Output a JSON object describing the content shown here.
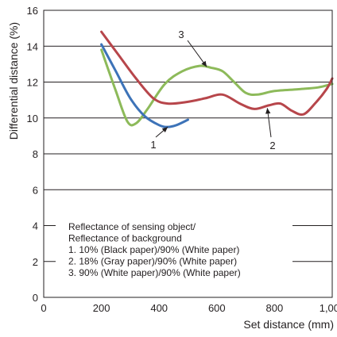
{
  "chart_data": {
    "type": "line",
    "title": "",
    "xlabel": "Set distance (mm)",
    "ylabel": "Differential distance (%)",
    "xlim": [
      0,
      1000
    ],
    "ylim": [
      0,
      16
    ],
    "x_ticks": [
      0,
      200,
      400,
      600,
      800,
      1000
    ],
    "x_tick_labels": [
      "0",
      "200",
      "400",
      "600",
      "800",
      "1,000"
    ],
    "y_ticks": [
      0,
      2,
      4,
      6,
      8,
      10,
      12,
      14,
      16
    ],
    "y_tick_labels": [
      "0",
      "2",
      "4",
      "6",
      "8",
      "10",
      "12",
      "14",
      "16"
    ],
    "grid": "horizontal",
    "series": [
      {
        "name": "1",
        "color": "#3d73b8",
        "x": [
          200,
          250,
          300,
          350,
          400,
          430,
          460,
          500
        ],
        "y": [
          14.1,
          12.6,
          11.1,
          10.1,
          9.6,
          9.5,
          9.6,
          9.9
        ]
      },
      {
        "name": "2",
        "color": "#b7464b",
        "x": [
          200,
          260,
          320,
          380,
          430,
          500,
          560,
          620,
          680,
          730,
          780,
          820,
          860,
          900,
          940,
          980,
          1000
        ],
        "y": [
          14.8,
          13.5,
          12.2,
          11.1,
          10.8,
          10.9,
          11.1,
          11.3,
          10.8,
          10.5,
          10.7,
          10.8,
          10.4,
          10.2,
          10.8,
          11.6,
          12.2
        ]
      },
      {
        "name": "3",
        "color": "#8dba5a",
        "x": [
          200,
          250,
          290,
          320,
          360,
          420,
          480,
          540,
          580,
          620,
          660,
          700,
          740,
          800,
          880,
          950,
          1000
        ],
        "y": [
          13.8,
          11.5,
          9.8,
          9.7,
          10.5,
          11.9,
          12.6,
          12.9,
          12.8,
          12.6,
          12.0,
          11.4,
          11.3,
          11.5,
          11.6,
          11.7,
          11.9
        ]
      }
    ],
    "annotations": [
      {
        "text": "1",
        "series": "1"
      },
      {
        "text": "2",
        "series": "2"
      },
      {
        "text": "3",
        "series": "3"
      }
    ],
    "legend": {
      "placement": "bottom-left",
      "lines": [
        "Reflectance of sensing object/",
        "Reflectance of background",
        "1. 10% (Black paper)/90% (White paper)",
        "2. 18% (Gray paper)/90% (White paper)",
        "3. 90% (White paper)/90% (White paper)"
      ]
    }
  }
}
